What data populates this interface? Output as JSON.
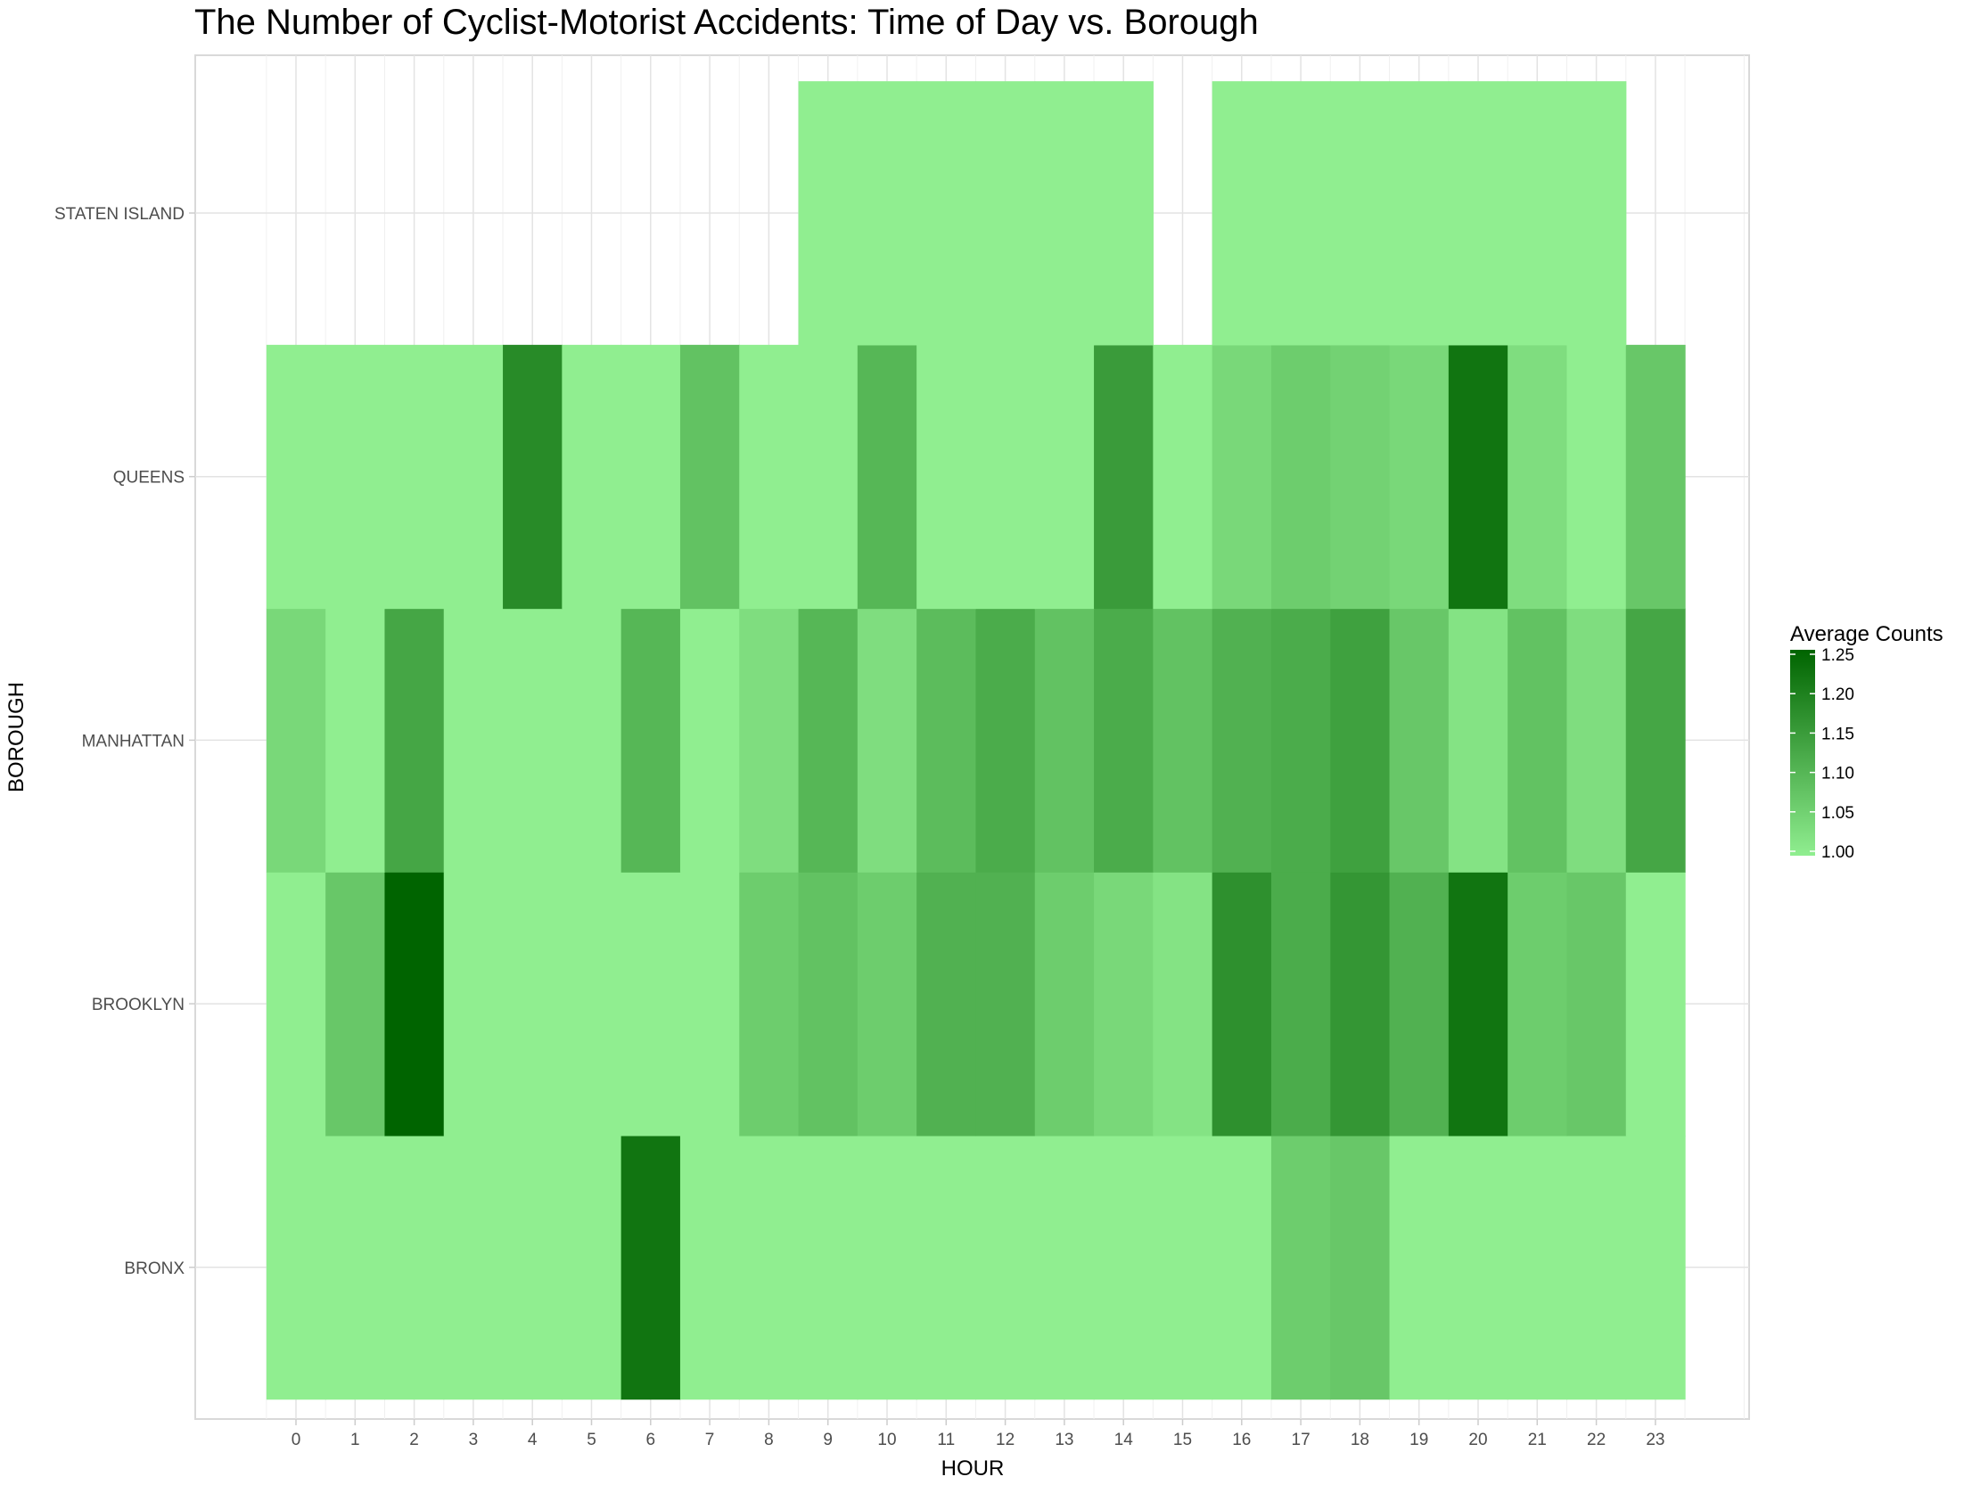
{
  "chart_data": {
    "type": "heatmap",
    "title": "The Number of Cyclist-Motorist Accidents: Time of Day vs. Borough",
    "xlabel": "HOUR",
    "ylabel": "BOROUGH",
    "x": [
      "0",
      "1",
      "2",
      "3",
      "4",
      "5",
      "6",
      "7",
      "8",
      "9",
      "10",
      "11",
      "12",
      "13",
      "14",
      "15",
      "16",
      "17",
      "18",
      "19",
      "20",
      "21",
      "22",
      "23"
    ],
    "y": [
      "BRONX",
      "BROOKLYN",
      "MANHATTAN",
      "QUEENS",
      "STATEN ISLAND"
    ],
    "z": [
      [
        1.0,
        1.0,
        1.0,
        1.0,
        1.0,
        1.0,
        1.22,
        1.0,
        1.0,
        1.0,
        1.0,
        1.0,
        1.0,
        1.0,
        1.0,
        1.0,
        1.0,
        1.06,
        1.07,
        1.0,
        1.0,
        1.0,
        1.0,
        1.0
      ],
      [
        1.0,
        1.07,
        1.25,
        1.0,
        1.0,
        1.0,
        1.0,
        1.0,
        1.06,
        1.08,
        1.06,
        1.11,
        1.11,
        1.06,
        1.04,
        1.02,
        1.17,
        1.12,
        1.16,
        1.11,
        1.22,
        1.06,
        1.07,
        1.0
      ],
      [
        1.04,
        1.0,
        1.13,
        1.0,
        1.0,
        1.0,
        1.1,
        1.0,
        1.03,
        1.1,
        1.03,
        1.09,
        1.12,
        1.08,
        1.12,
        1.08,
        1.11,
        1.12,
        1.14,
        1.07,
        1.02,
        1.08,
        1.03,
        1.13
      ],
      [
        1.0,
        1.0,
        1.0,
        1.0,
        1.18,
        1.0,
        1.0,
        1.08,
        1.0,
        1.0,
        1.1,
        1.0,
        1.0,
        1.0,
        1.15,
        1.0,
        1.04,
        1.06,
        1.05,
        1.04,
        1.22,
        1.03,
        1.0,
        1.07
      ],
      [
        null,
        null,
        null,
        null,
        null,
        null,
        null,
        null,
        null,
        1.0,
        1.0,
        1.0,
        1.0,
        1.0,
        1.0,
        null,
        1.0,
        1.0,
        1.0,
        1.0,
        1.0,
        1.0,
        1.0,
        null
      ]
    ],
    "grid": true,
    "legend": {
      "title": "Average Counts",
      "position": "right",
      "ticks": [
        "1.00",
        "1.05",
        "1.10",
        "1.15",
        "1.20",
        "1.25"
      ],
      "range": [
        1.0,
        1.25
      ],
      "colors": {
        "low": "#90ee90",
        "high": "#006400"
      }
    }
  }
}
